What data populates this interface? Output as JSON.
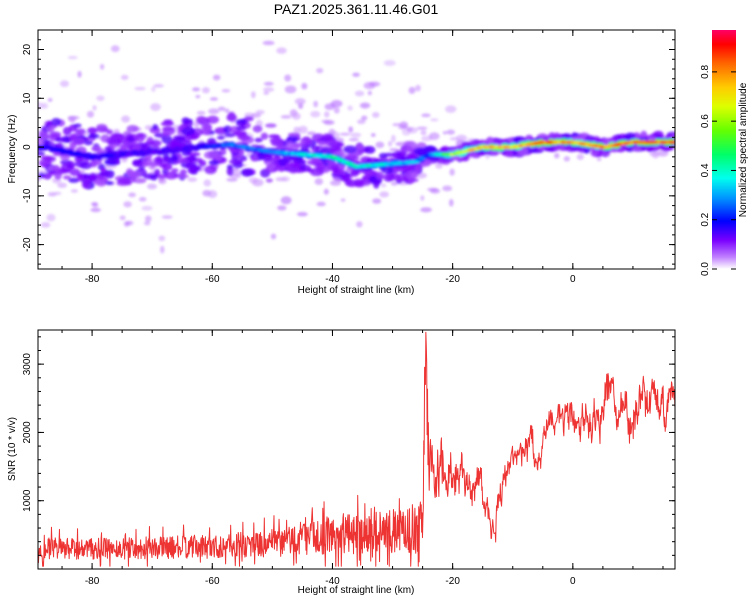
{
  "title": "PAZ1.2025.361.11.46.G01",
  "chart_data": [
    {
      "type": "heatmap",
      "xlabel": "Height of straight line (km)",
      "ylabel": "Frequency (Hz)",
      "xlim": [
        -89,
        17
      ],
      "ylim": [
        -25,
        24
      ],
      "xticks": [
        -80,
        -60,
        -40,
        -20,
        0
      ],
      "xtick_labels": [
        "-80",
        "-60",
        "-40",
        "-20",
        "0"
      ],
      "yticks": [
        -20,
        -10,
        0,
        10,
        20
      ],
      "ytick_labels": [
        "-20",
        "-10",
        "0",
        "10",
        "20"
      ],
      "colorbar": {
        "label": "Normalized spectral amplitude",
        "range": [
          0,
          0.97
        ],
        "ticks": [
          0.0,
          0.2,
          0.4,
          0.6,
          0.8
        ],
        "tick_labels": [
          "0.0",
          "0.2",
          "0.4",
          "0.6",
          "0.8"
        ],
        "colormap": [
          "#ffffff",
          "#d9b8ff",
          "#8a2be2",
          "#3300ff",
          "#0000ff",
          "#00e5ff",
          "#00ff66",
          "#aaff00",
          "#ffff00",
          "#ff8800",
          "#ff0000",
          "#ff0066"
        ]
      },
      "ridge": {
        "description_points": [
          {
            "x": -88,
            "y": 0,
            "a": 0.2
          },
          {
            "x": -80,
            "y": -2,
            "a": 0.2
          },
          {
            "x": -70,
            "y": -1,
            "a": 0.15
          },
          {
            "x": -62,
            "y": 0,
            "a": 0.18
          },
          {
            "x": -57,
            "y": 0.5,
            "a": 0.3
          },
          {
            "x": -50,
            "y": -1,
            "a": 0.3
          },
          {
            "x": -45,
            "y": -1.5,
            "a": 0.4
          },
          {
            "x": -40,
            "y": -2,
            "a": 0.45
          },
          {
            "x": -36,
            "y": -4,
            "a": 0.45
          },
          {
            "x": -31,
            "y": -3.5,
            "a": 0.4
          },
          {
            "x": -26,
            "y": -3,
            "a": 0.35
          },
          {
            "x": -24,
            "y": -1.5,
            "a": 0.25
          },
          {
            "x": -20,
            "y": -1.5,
            "a": 0.7
          },
          {
            "x": -15,
            "y": 0,
            "a": 0.85
          },
          {
            "x": -10,
            "y": 0,
            "a": 0.8
          },
          {
            "x": -5,
            "y": 1,
            "a": 0.95
          },
          {
            "x": 0,
            "y": 1,
            "a": 0.85
          },
          {
            "x": 5,
            "y": 0,
            "a": 0.9
          },
          {
            "x": 10,
            "y": 1,
            "a": 0.95
          },
          {
            "x": 16,
            "y": 1,
            "a": 0.95
          }
        ]
      }
    },
    {
      "type": "line",
      "xlabel": "Height of straight line (km)",
      "ylabel": "SNR (10 * v/v)",
      "xlim": [
        -89,
        17
      ],
      "ylim": [
        0,
        3500
      ],
      "xticks": [
        -80,
        -60,
        -40,
        -20,
        0
      ],
      "xtick_labels": [
        "-80",
        "-60",
        "-40",
        "-20",
        "0"
      ],
      "yticks": [
        1000,
        2000,
        3000
      ],
      "ytick_labels": [
        "1000",
        "2000",
        "3000"
      ],
      "series": [
        {
          "name": "SNR",
          "color": "#ee3333",
          "envelope": {
            "x": [
              -89,
              -80,
              -70,
              -60,
              -50,
              -45,
              -40,
              -35,
              -30,
              -27,
              -25,
              -24.5,
              -24,
              -23,
              -21,
              -20,
              -18,
              -16,
              -14,
              -13,
              -12,
              -10,
              -8,
              -6,
              -4,
              -2,
              0,
              2,
              4,
              6,
              8,
              10,
              12,
              14,
              16,
              17
            ],
            "mean": [
              300,
              290,
              310,
              330,
              380,
              450,
              500,
              520,
              550,
              580,
              600,
              3400,
              1600,
              1200,
              1300,
              1500,
              1600,
              1200,
              1000,
              700,
              1400,
              1600,
              1800,
              1700,
              2000,
              2200,
              2000,
              2100,
              2300,
              2600,
              2200,
              2500,
              2700,
              2300,
              2300,
              2400
            ],
            "amp": [
              200,
              200,
              200,
              220,
              250,
              300,
              350,
              380,
              400,
              450,
              500,
              800,
              700,
              600,
              500,
              450,
              400,
              400,
              350,
              300,
              350,
              300,
              300,
              300,
              300,
              300,
              350,
              350,
              350,
              400,
              400,
              400,
              400,
              400,
              350,
              300
            ]
          }
        }
      ]
    }
  ]
}
